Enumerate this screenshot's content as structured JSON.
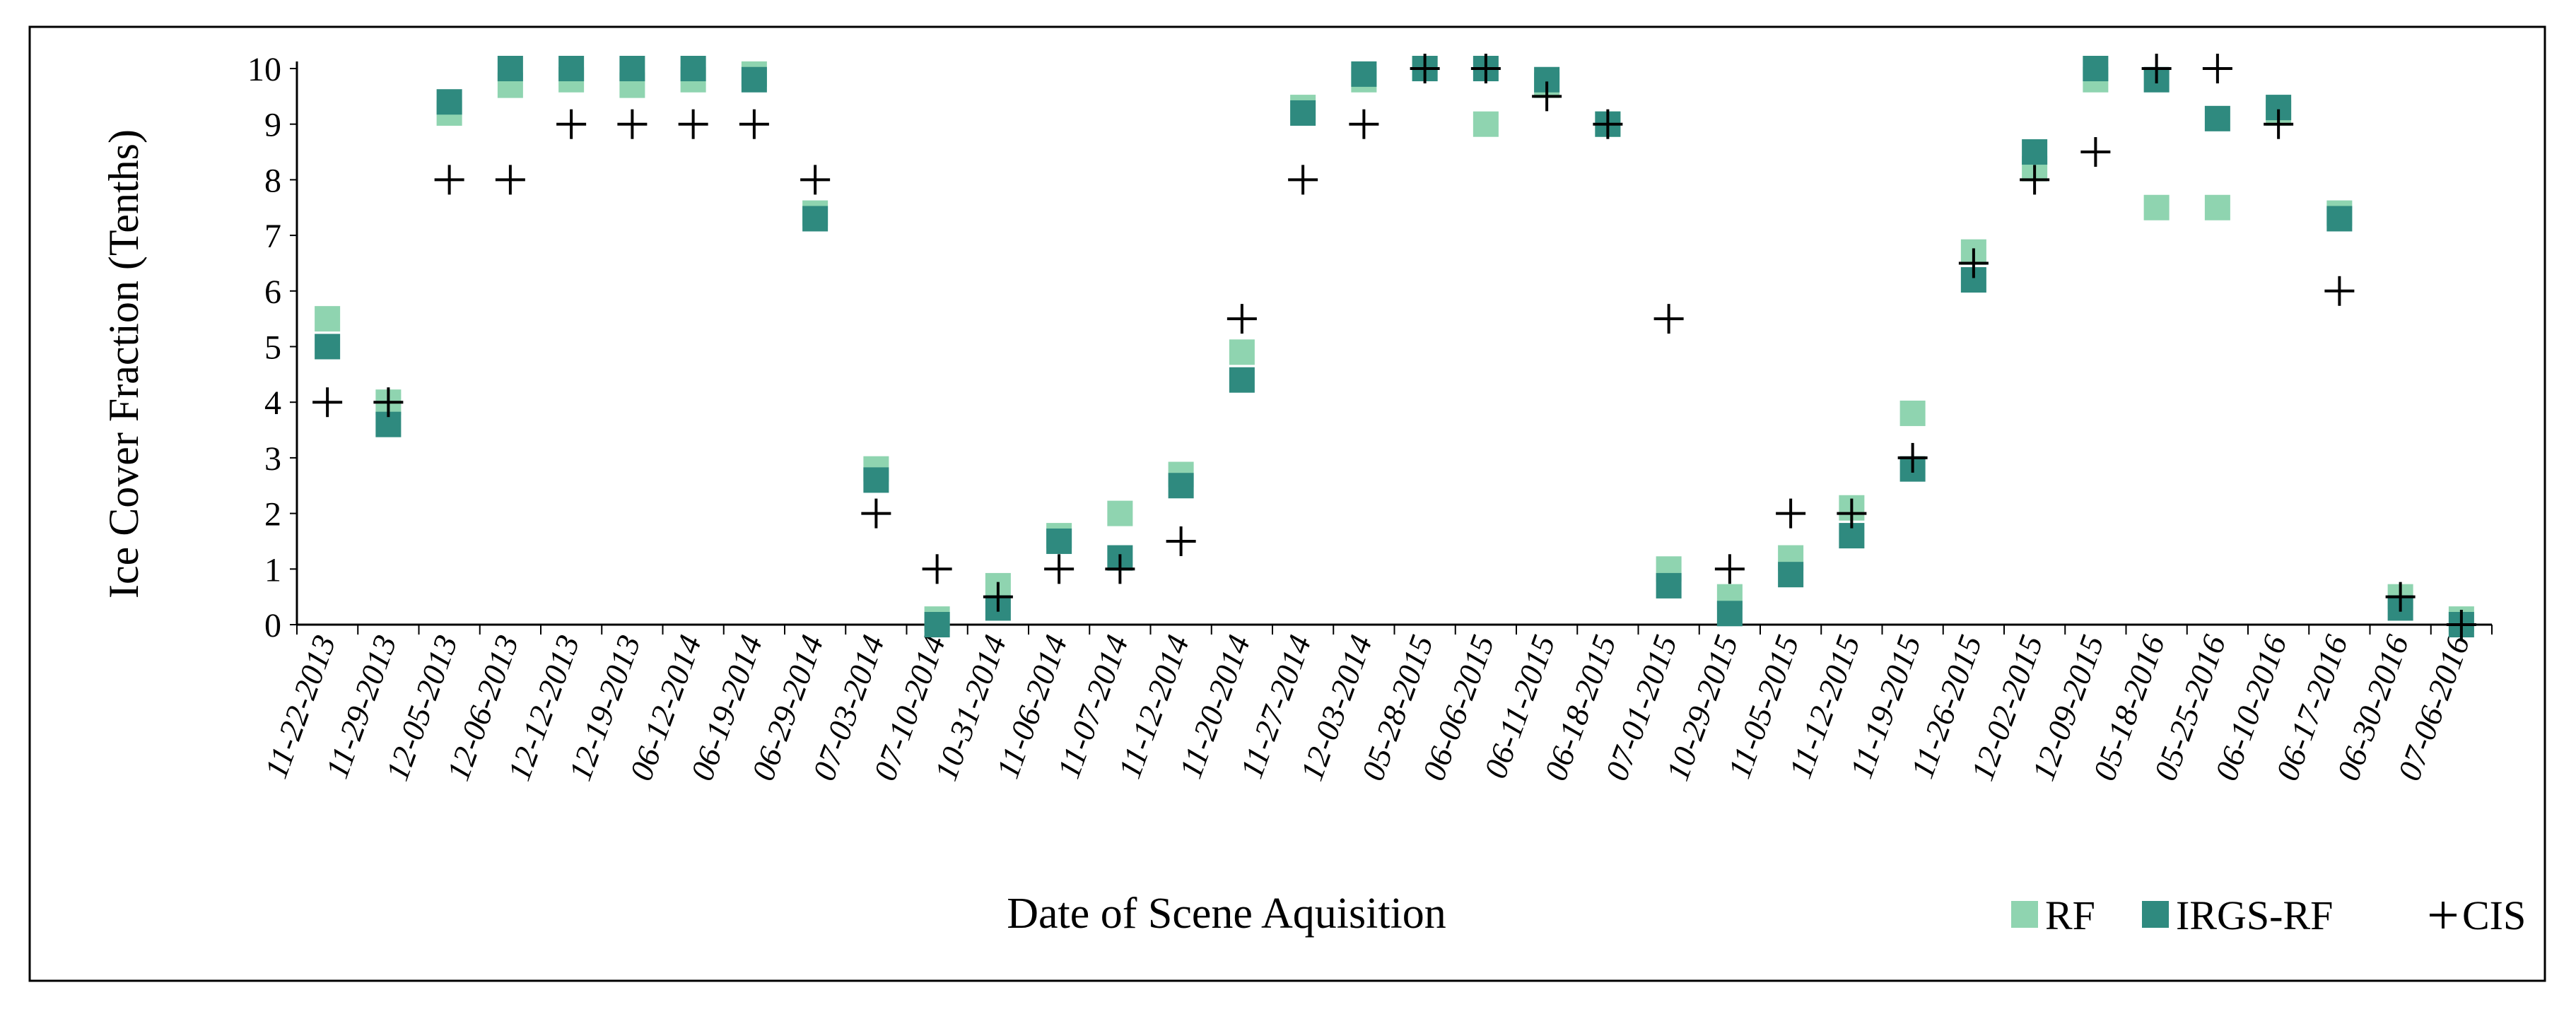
{
  "chart_data": {
    "type": "scatter",
    "xlabel": "Date of Scene Aquisition",
    "ylabel": "Ice Cover Fraction (Tenths)",
    "ylim": [
      0,
      10
    ],
    "yticks": [
      "0",
      "1",
      "2",
      "3",
      "4",
      "5",
      "6",
      "7",
      "8",
      "9",
      "10"
    ],
    "grid": false,
    "legend_position": "bottom-right",
    "categories": [
      "11-22-2013",
      "11-29-2013",
      "12-05-2013",
      "12-06-2013",
      "12-12-2013",
      "12-19-2013",
      "06-12-2014",
      "06-19-2014",
      "06-29-2014",
      "07-03-2014",
      "07-10-2014",
      "10-31-2014",
      "11-06-2014",
      "11-07-2014",
      "11-12-2014",
      "11-20-2014",
      "11-27-2014",
      "12-03-2014",
      "05-28-2015",
      "06-06-2015",
      "06-11-2015",
      "06-18-2015",
      "07-01-2015",
      "10-29-2015",
      "11-05-2015",
      "11-12-2015",
      "11-19-2015",
      "11-26-2015",
      "12-02-2015",
      "12-09-2015",
      "05-18-2016",
      "05-25-2016",
      "06-10-2016",
      "06-17-2016",
      "06-30-2016",
      "07-06-2016"
    ],
    "series": [
      {
        "name": "RF",
        "marker": "square",
        "color": "#8fd4b0",
        "values": [
          5.5,
          4.0,
          9.2,
          9.7,
          9.8,
          9.7,
          9.8,
          9.9,
          7.4,
          2.8,
          0.1,
          0.7,
          1.6,
          2.0,
          2.7,
          4.9,
          9.3,
          9.8,
          10.0,
          9.0,
          9.7,
          9.0,
          1.0,
          0.5,
          1.2,
          2.1,
          3.8,
          6.7,
          8.2,
          9.8,
          7.5,
          7.5,
          9.2,
          7.4,
          0.5,
          0.1
        ]
      },
      {
        "name": "IRGS-RF",
        "marker": "square",
        "color": "#2f8a7f",
        "values": [
          5.0,
          3.6,
          9.4,
          10.0,
          10.0,
          10.0,
          10.0,
          9.8,
          7.3,
          2.6,
          0.0,
          0.3,
          1.5,
          1.2,
          2.5,
          4.4,
          9.2,
          9.9,
          10.0,
          10.0,
          9.8,
          9.0,
          0.7,
          0.2,
          0.9,
          1.6,
          2.8,
          6.2,
          8.5,
          10.0,
          9.8,
          9.1,
          9.3,
          7.3,
          0.3,
          0.0
        ]
      },
      {
        "name": "CIS",
        "marker": "plus",
        "color": "#000000",
        "values": [
          4.0,
          4.0,
          8.0,
          8.0,
          9.0,
          9.0,
          9.0,
          9.0,
          8.0,
          2.0,
          1.0,
          0.5,
          1.0,
          1.0,
          1.5,
          5.5,
          8.0,
          9.0,
          10.0,
          10.0,
          9.5,
          9.0,
          5.5,
          1.0,
          2.0,
          2.0,
          3.0,
          6.5,
          8.0,
          8.5,
          10.0,
          10.0,
          9.0,
          6.0,
          0.5,
          0.0
        ]
      }
    ]
  }
}
